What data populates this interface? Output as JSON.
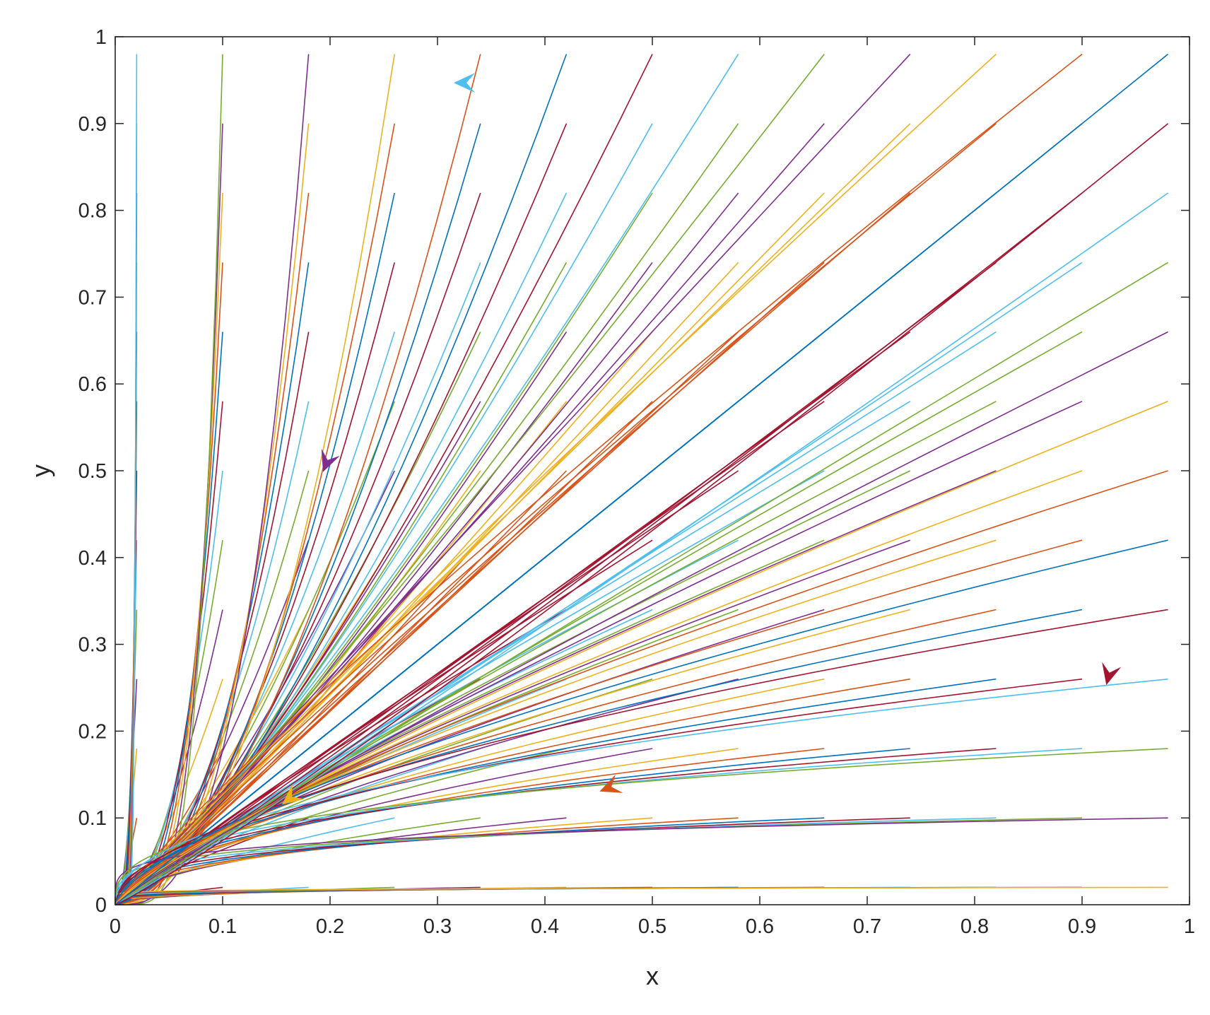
{
  "chart_data": {
    "type": "line",
    "title": "",
    "xlabel": "x",
    "ylabel": "y",
    "xlim": [
      0,
      1
    ],
    "ylim": [
      0,
      1
    ],
    "x_ticks": [
      "0",
      "0.1",
      "0.2",
      "0.3",
      "0.4",
      "0.5",
      "0.6",
      "0.7",
      "0.8",
      "0.9",
      "1"
    ],
    "y_ticks": [
      "0",
      "0.1",
      "0.2",
      "0.3",
      "0.4",
      "0.5",
      "0.6",
      "0.7",
      "0.8",
      "0.9",
      "1"
    ],
    "grid": false,
    "legend": "none",
    "description_of_series": "phase-plane trajectories from initial points (x0, y0) on a grid, all converging to the origin (0, 0)",
    "initial_x": [
      0.02,
      0.1,
      0.18,
      0.26,
      0.34,
      0.42,
      0.5,
      0.58,
      0.66,
      0.74,
      0.82,
      0.9,
      0.98
    ],
    "initial_y": [
      0.02,
      0.1,
      0.18,
      0.26,
      0.34,
      0.42,
      0.5,
      0.58,
      0.66,
      0.74,
      0.82,
      0.9,
      0.98
    ],
    "series_colors": [
      "#0072BD",
      "#D95319",
      "#EDB120",
      "#7E2F8E",
      "#77AC30",
      "#4DBEEE",
      "#A2142F"
    ],
    "direction_arrows": [
      {
        "x": 0.325,
        "y": 0.947,
        "dx": 1,
        "dy": 0,
        "color": "#4DBEEE"
      },
      {
        "x": 0.197,
        "y": 0.51,
        "dx": 0.36,
        "dy": 0.93,
        "color": "#7E2F8E"
      },
      {
        "x": 0.163,
        "y": 0.123,
        "dx": 0.78,
        "dy": 0.62,
        "color": "#EDB120"
      },
      {
        "x": 0.46,
        "y": 0.135,
        "dx": 0.93,
        "dy": 0.37,
        "color": "#D95319"
      },
      {
        "x": 0.925,
        "y": 0.265,
        "dx": 0.25,
        "dy": 0.97,
        "color": "#A2142F"
      }
    ]
  }
}
